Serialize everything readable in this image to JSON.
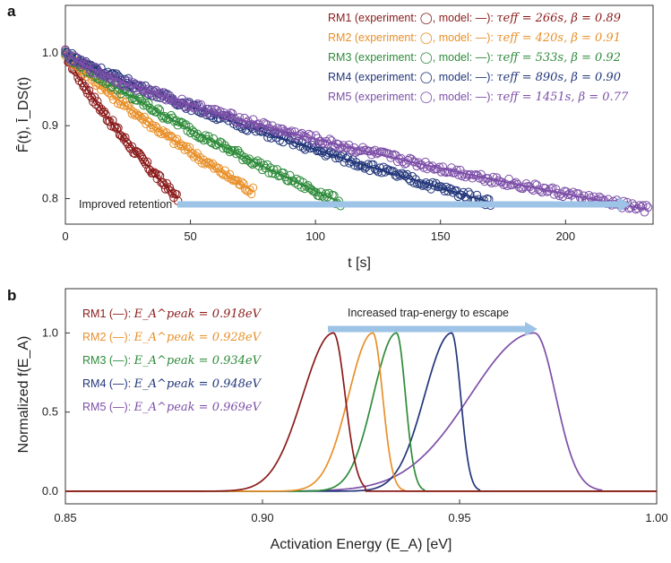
{
  "chart_data": [
    {
      "panel": "a",
      "type": "scatter",
      "xlabel": "t [s]",
      "ylabel": "F̄(t), Ī_DS(t)",
      "xlim": [
        0,
        235
      ],
      "ylim": [
        0.765,
        1.065
      ],
      "xticks": [
        0,
        50,
        100,
        150,
        200
      ],
      "yticks": [
        0.8,
        0.9,
        1.0
      ],
      "xtick_labels": [
        "0",
        "50",
        "100",
        "150",
        "200"
      ],
      "ytick_labels": [
        "0.8",
        "0.9",
        "1.0"
      ],
      "grid": false,
      "legend_position": "top-right",
      "annotation": "Improved retention",
      "series": [
        {
          "name": "RM1",
          "legend_prefix": "RM1 (experiment: ◯, model: —): ",
          "legend_math": "τeff = 266s, β = 0.89",
          "color": "#8b1a1a",
          "tau": 266,
          "beta": 0.89,
          "t_end": 45,
          "y_end": 0.8
        },
        {
          "name": "RM2",
          "legend_prefix": "RM2 (experiment: ◯, model: —): ",
          "legend_math": "τeff = 420s, β = 0.91",
          "color": "#e8902a",
          "tau": 420,
          "beta": 0.91,
          "t_end": 75,
          "y_end": 0.81
        },
        {
          "name": "RM3",
          "legend_prefix": "RM3 (experiment: ◯, model: —): ",
          "legend_math": "τeff = 533s, β = 0.92",
          "color": "#2e8b3a",
          "tau": 533,
          "beta": 0.92,
          "t_end": 110,
          "y_end": 0.795
        },
        {
          "name": "RM4",
          "legend_prefix": "RM4 (experiment: ◯, model: —): ",
          "legend_math": "τeff = 890s, β = 0.90",
          "color": "#22367a",
          "tau": 890,
          "beta": 0.9,
          "t_end": 170,
          "y_end": 0.795
        },
        {
          "name": "RM5",
          "legend_prefix": "RM5 (experiment: ◯, model: —): ",
          "legend_math": "τeff = 1451s, β = 0.77",
          "color": "#7d4fa8",
          "tau": 1451,
          "beta": 0.77,
          "t_end": 233,
          "y_end": 0.785
        }
      ]
    },
    {
      "panel": "b",
      "type": "line",
      "xlabel": "Activation Energy (E_A) [eV]",
      "ylabel": "Normalized f(E_A)",
      "xlim": [
        0.85,
        1.0
      ],
      "ylim": [
        -0.08,
        1.28
      ],
      "xticks": [
        0.85,
        0.9,
        0.95,
        1.0
      ],
      "yticks": [
        0.0,
        0.5,
        1.0
      ],
      "xtick_labels": [
        "0.85",
        "0.90",
        "0.95",
        "1.00"
      ],
      "ytick_labels": [
        "0.0",
        "0.5",
        "1.0"
      ],
      "grid": false,
      "legend_position": "top-left",
      "annotation": "Increased trap-energy to escape",
      "series": [
        {
          "name": "RM1",
          "legend_prefix": "RM1 (—): ",
          "legend_math": "E_A^peak = 0.918eV",
          "color": "#8b1a1a",
          "peak": 0.918,
          "left_width": 0.011,
          "right_width": 0.0042,
          "start": 0.885,
          "end": 0.926
        },
        {
          "name": "RM2",
          "legend_prefix": "RM2 (—): ",
          "legend_math": "E_A^peak = 0.928eV",
          "color": "#e8902a",
          "peak": 0.928,
          "left_width": 0.0087,
          "right_width": 0.0035,
          "start": 0.897,
          "end": 0.936
        },
        {
          "name": "RM3",
          "legend_prefix": "RM3 (—): ",
          "legend_math": "E_A^peak = 0.934eV",
          "color": "#2e8b3a",
          "peak": 0.934,
          "left_width": 0.0083,
          "right_width": 0.0032,
          "start": 0.904,
          "end": 0.941
        },
        {
          "name": "RM4",
          "legend_prefix": "RM4 (—): ",
          "legend_math": "E_A^peak = 0.948eV",
          "color": "#22367a",
          "peak": 0.948,
          "left_width": 0.0097,
          "right_width": 0.0032,
          "start": 0.913,
          "end": 0.955
        },
        {
          "name": "RM5",
          "legend_prefix": "RM5 (—): ",
          "legend_math": "E_A^peak = 0.969eV",
          "color": "#7d4fa8",
          "peak": 0.969,
          "left_width": 0.023,
          "right_width": 0.0076,
          "start": 0.897,
          "end": 0.986
        }
      ]
    }
  ]
}
